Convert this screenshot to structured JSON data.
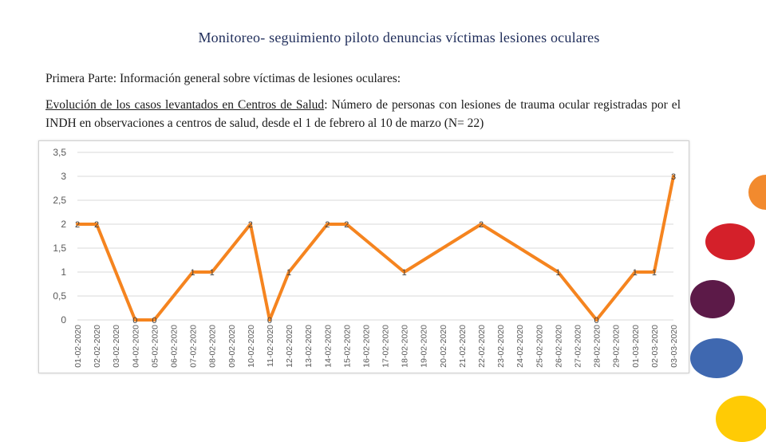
{
  "slide": {
    "title": "Monitoreo- seguimiento piloto denuncias víctimas lesiones oculares",
    "subtitle": "Primera Parte: Información  general sobre víctimas de lesiones oculares:",
    "desc_underlined": "Evolución de los casos levantados en Centros de Salud",
    "desc_text": ": Número de personas con lesiones de trauma ocular registradas por el INDH en observaciones a centros de salud, ",
    "desc_bold": "desde el 1 de febrero al 10 de marzo (N= 22)"
  },
  "decor_colors": [
    "#f28a2e",
    "#d4202a",
    "#5c1a48",
    "#3f68b0",
    "#ffcb05"
  ],
  "chart_data": {
    "type": "line",
    "line_color": "#f5841f",
    "ylim": [
      0,
      3.5
    ],
    "yticks": [
      "0",
      "0,5",
      "1",
      "1,5",
      "2",
      "2,5",
      "3",
      "3,5"
    ],
    "grid": true,
    "categories": [
      "01-02-2020",
      "02-02-2020",
      "03-02-2020",
      "04-02-2020",
      "05-02-2020",
      "06-02-2020",
      "07-02-2020",
      "08-02-2020",
      "09-02-2020",
      "10-02-2020",
      "11-02-2020",
      "12-02-2020",
      "13-02-2020",
      "14-02-2020",
      "15-02-2020",
      "16-02-2020",
      "17-02-2020",
      "18-02-2020",
      "19-02-2020",
      "20-02-2020",
      "21-02-2020",
      "22-02-2020",
      "23-02-2020",
      "24-02-2020",
      "25-02-2020",
      "26-02-2020",
      "27-02-2020",
      "28-02-2020",
      "29-02-2020",
      "01-03-2020",
      "02-03-2020",
      "03-03-2020"
    ],
    "points": [
      {
        "x": "01-02-2020",
        "y": 2
      },
      {
        "x": "02-02-2020",
        "y": 2
      },
      {
        "x": "04-02-2020",
        "y": 0
      },
      {
        "x": "05-02-2020",
        "y": 0
      },
      {
        "x": "07-02-2020",
        "y": 1
      },
      {
        "x": "08-02-2020",
        "y": 1
      },
      {
        "x": "10-02-2020",
        "y": 2
      },
      {
        "x": "11-02-2020",
        "y": 0
      },
      {
        "x": "12-02-2020",
        "y": 1
      },
      {
        "x": "14-02-2020",
        "y": 2
      },
      {
        "x": "15-02-2020",
        "y": 2
      },
      {
        "x": "18-02-2020",
        "y": 1
      },
      {
        "x": "22-02-2020",
        "y": 2
      },
      {
        "x": "26-02-2020",
        "y": 1
      },
      {
        "x": "28-02-2020",
        "y": 0
      },
      {
        "x": "01-03-2020",
        "y": 1
      },
      {
        "x": "02-03-2020",
        "y": 1
      },
      {
        "x": "03-03-2020",
        "y": 3
      }
    ],
    "data_labels": [
      "2",
      "2",
      "0",
      "0",
      "1",
      "1",
      "2",
      "0",
      "1",
      "2",
      "2",
      "1",
      "2",
      "1",
      "0",
      "1",
      "1",
      "3"
    ]
  }
}
